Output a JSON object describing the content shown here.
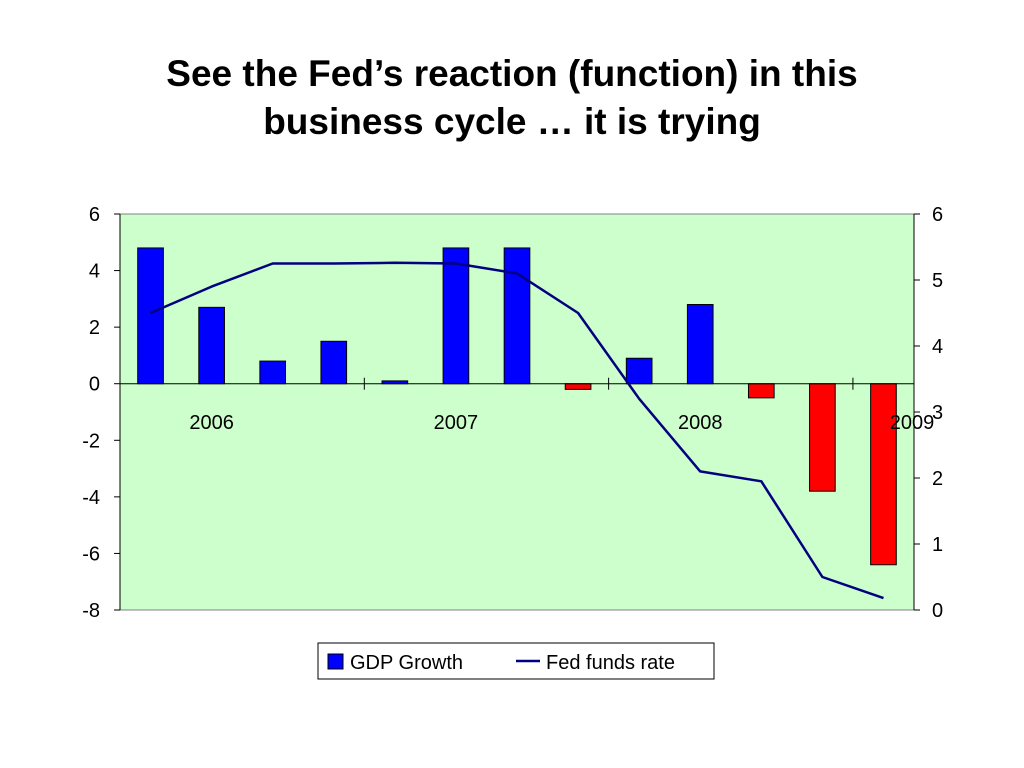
{
  "slide": {
    "title_line1": "See the Fed’s reaction (function) in this",
    "title_line2": "business cycle … it is trying"
  },
  "chart_data": {
    "type": "bar",
    "plot_background": "#ccffcc",
    "categories": [
      "2006",
      "",
      "",
      "",
      "2007",
      "",
      "",
      "",
      "2008",
      "",
      "",
      "",
      "2009"
    ],
    "year_labels": [
      {
        "label": "2006",
        "start_index": 0
      },
      {
        "label": "2007",
        "start_index": 4
      },
      {
        "label": "2008",
        "start_index": 8
      },
      {
        "label": "2009",
        "start_index": 12
      }
    ],
    "series": [
      {
        "name": "GDP Growth",
        "type": "bar",
        "axis": "left",
        "color": "#0000ff",
        "negative_color": "#ff0000",
        "values": [
          4.8,
          2.7,
          0.8,
          1.5,
          0.1,
          4.8,
          4.8,
          -0.2,
          0.9,
          2.8,
          -0.5,
          -3.8,
          -6.4
        ]
      },
      {
        "name": "Fed funds rate",
        "type": "line",
        "axis": "right",
        "color": "#000080",
        "values": [
          4.5,
          4.9,
          5.25,
          5.25,
          5.26,
          5.25,
          5.1,
          4.5,
          3.2,
          2.1,
          1.95,
          0.5,
          0.18
        ]
      }
    ],
    "y_left": {
      "min": -8,
      "max": 6,
      "ticks": [
        6,
        4,
        2,
        0,
        -2,
        -4,
        -6,
        -8
      ]
    },
    "y_right": {
      "min": 0,
      "max": 6,
      "ticks": [
        6,
        5,
        4,
        3,
        2,
        1,
        0
      ]
    },
    "grid": false,
    "legend": {
      "position": "bottom",
      "items": [
        {
          "label": "GDP Growth",
          "symbol": "box",
          "color": "#0000ff"
        },
        {
          "label": "Fed funds rate",
          "symbol": "line",
          "color": "#000080"
        }
      ]
    }
  }
}
